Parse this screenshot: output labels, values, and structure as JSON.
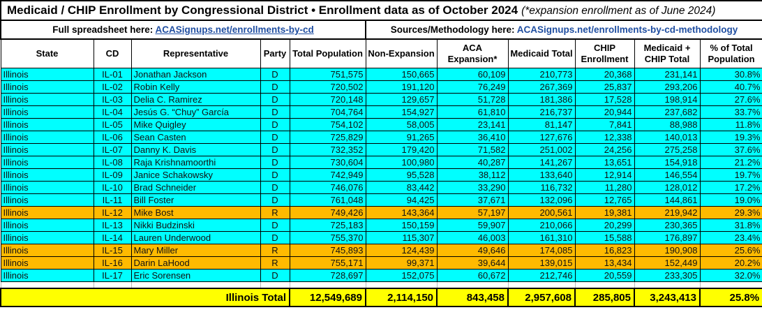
{
  "header": {
    "title_main": "Medicaid / CHIP Enrollment by Congressional District • Enrollment data as of October 2024",
    "title_note": "(*expansion enrollment as of June 2024)",
    "spreadsheet_prefix": "Full spreadsheet here: ",
    "spreadsheet_link": "ACASignups.net/enrollments-by-cd",
    "methodology_prefix": "Sources/Methodology here: ",
    "methodology_link": "ACASignups.net/enrollments-by-cd-methodology"
  },
  "colors": {
    "dem_row": "#00FFFF",
    "rep_row": "#FFBA00",
    "total_row": "#FFFF00",
    "link_blue": "#1F4EA1",
    "grid": "#000000"
  },
  "chart_data": {
    "type": "table",
    "title": "Medicaid / CHIP Enrollment by Congressional District • Enrollment data as of October 2024 (*expansion enrollment as of June 2024)",
    "columns": [
      "State",
      "CD",
      "Representative",
      "Party",
      "Total Population",
      "Non-Expansion",
      "ACA Expansion*",
      "Medicaid Total",
      "CHIP Enrollment",
      "Medicaid + CHIP Total",
      "% of Total Population"
    ],
    "rows": [
      [
        "Illinois",
        "IL-01",
        "Jonathan Jackson",
        "D",
        "751,575",
        "150,665",
        "60,109",
        "210,773",
        "20,368",
        "231,141",
        "30.8%"
      ],
      [
        "Illinois",
        "IL-02",
        "Robin Kelly",
        "D",
        "720,502",
        "191,120",
        "76,249",
        "267,369",
        "25,837",
        "293,206",
        "40.7%"
      ],
      [
        "Illinois",
        "IL-03",
        "Delia C. Ramirez",
        "D",
        "720,148",
        "129,657",
        "51,728",
        "181,386",
        "17,528",
        "198,914",
        "27.6%"
      ],
      [
        "Illinois",
        "IL-04",
        "Jesús G. “Chuy” García",
        "D",
        "704,764",
        "154,927",
        "61,810",
        "216,737",
        "20,944",
        "237,682",
        "33.7%"
      ],
      [
        "Illinois",
        "IL-05",
        "Mike Quigley",
        "D",
        "754,102",
        "58,005",
        "23,141",
        "81,147",
        "7,841",
        "88,988",
        "11.8%"
      ],
      [
        "Illinois",
        "IL-06",
        "Sean Casten",
        "D",
        "725,829",
        "91,265",
        "36,410",
        "127,676",
        "12,338",
        "140,013",
        "19.3%"
      ],
      [
        "Illinois",
        "IL-07",
        "Danny K. Davis",
        "D",
        "732,352",
        "179,420",
        "71,582",
        "251,002",
        "24,256",
        "275,258",
        "37.6%"
      ],
      [
        "Illinois",
        "IL-08",
        "Raja Krishnamoorthi",
        "D",
        "730,604",
        "100,980",
        "40,287",
        "141,267",
        "13,651",
        "154,918",
        "21.2%"
      ],
      [
        "Illinois",
        "IL-09",
        "Janice Schakowsky",
        "D",
        "742,949",
        "95,528",
        "38,112",
        "133,640",
        "12,914",
        "146,554",
        "19.7%"
      ],
      [
        "Illinois",
        "IL-10",
        "Brad Schneider",
        "D",
        "746,076",
        "83,442",
        "33,290",
        "116,732",
        "11,280",
        "128,012",
        "17.2%"
      ],
      [
        "Illinois",
        "IL-11",
        "Bill Foster",
        "D",
        "761,048",
        "94,425",
        "37,671",
        "132,096",
        "12,765",
        "144,861",
        "19.0%"
      ],
      [
        "Illinois",
        "IL-12",
        "Mike Bost",
        "R",
        "749,426",
        "143,364",
        "57,197",
        "200,561",
        "19,381",
        "219,942",
        "29.3%"
      ],
      [
        "Illinois",
        "IL-13",
        "Nikki Budzinski",
        "D",
        "725,183",
        "150,159",
        "59,907",
        "210,066",
        "20,299",
        "230,365",
        "31.8%"
      ],
      [
        "Illinois",
        "IL-14",
        "Lauren Underwood",
        "D",
        "755,370",
        "115,307",
        "46,003",
        "161,310",
        "15,588",
        "176,897",
        "23.4%"
      ],
      [
        "Illinois",
        "IL-15",
        "Mary Miller",
        "R",
        "745,893",
        "124,439",
        "49,646",
        "174,085",
        "16,823",
        "190,908",
        "25.6%"
      ],
      [
        "Illinois",
        "IL-16",
        "Darin LaHood",
        "R",
        "755,171",
        "99,371",
        "39,644",
        "139,015",
        "13,434",
        "152,449",
        "20.2%"
      ],
      [
        "Illinois",
        "IL-17",
        "Eric Sorensen",
        "D",
        "728,697",
        "152,075",
        "60,672",
        "212,746",
        "20,559",
        "233,305",
        "32.0%"
      ]
    ],
    "total": [
      "Illinois Total",
      "12,549,689",
      "2,114,150",
      "843,458",
      "2,957,608",
      "285,805",
      "3,243,413",
      "25.8%"
    ]
  }
}
